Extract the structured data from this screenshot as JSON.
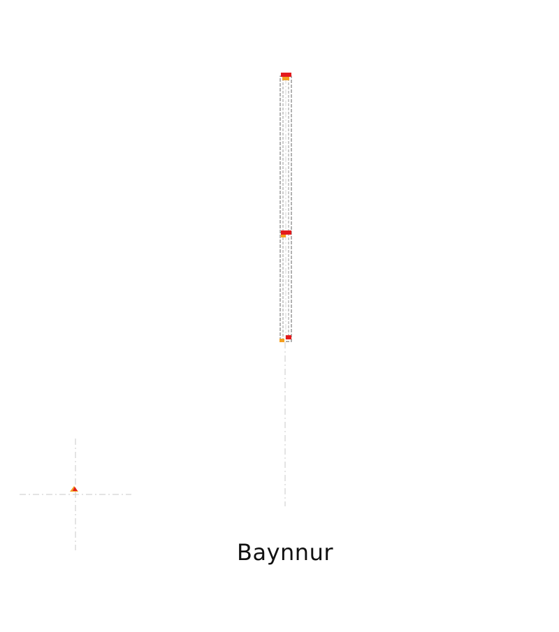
{
  "diagram": {
    "caption": "Baynnur",
    "colors": {
      "background": "#ffffff",
      "bar_stroke": "#7f7f7f",
      "guide": "#d3d3d3",
      "marker_red": "#e31a1c",
      "marker_orange": "#f4a020",
      "caption": "#111111"
    }
  }
}
